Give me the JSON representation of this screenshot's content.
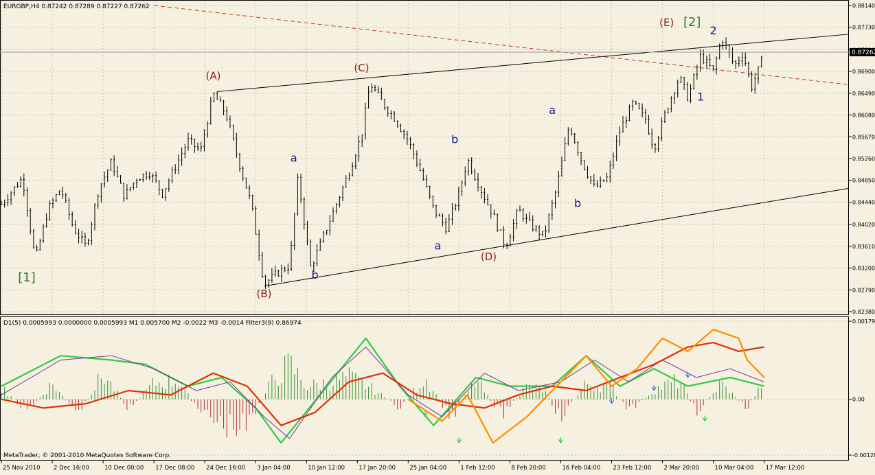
{
  "window": {
    "symbol_header": "EURGBP,H4  0.87242 0.87289 0.87227 0.87262",
    "copyright": "MetaTrader, © 2001-2010 MetaQuotes Software Corp."
  },
  "indicator": {
    "header": "D1(5) 0.0005993 0.0000000 0.0005993  M1 0.005700  M2 -0.0022  M3 -0.0014  Filter3(9) 0.86974"
  },
  "colors": {
    "background": "#f5f0df",
    "candle": "#000000",
    "wave_label_main": "#8b1a1a",
    "wave_label_minor": "#0a1a8c",
    "wave_label_degree": "#2a7a2a",
    "hist_positive": "#2f8f2f",
    "hist_negative": "#b03030",
    "trendline": "#000000",
    "resistance_dashed": "#c0392b",
    "line_green": "#2ecc40",
    "line_orange": "#ff8c00",
    "line_red": "#e03000",
    "line_purple": "#7b2f9e",
    "current_price_bg": "#000000"
  },
  "chart_data": [
    {
      "type": "candlestick",
      "title": "EURGBP,H4",
      "current_price_label": "0.87262",
      "current_price": 0.87262,
      "x_tick_labels": [
        "25 Nov 2010",
        "2 Dec 16:00",
        "10 Dec 00:00",
        "17 Dec 08:00",
        "24 Dec 16:00",
        "3 Jan 04:00",
        "10 Jan 12:00",
        "17 Jan 20:00",
        "25 Jan 04:00",
        "1 Feb 12:00",
        "8 Feb 20:00",
        "16 Feb 04:00",
        "23 Feb 12:00",
        "2 Mar 20:00",
        "10 Mar 04:00",
        "17 Mar 12:00"
      ],
      "y_tick_labels": [
        "0.88140",
        "0.87730",
        "0.87310",
        "0.86900",
        "0.86490",
        "0.86080",
        "0.85670",
        "0.85260",
        "0.84850",
        "0.84440",
        "0.84020",
        "0.83610",
        "0.83200",
        "0.82790",
        "0.82380"
      ],
      "ylim": [
        0.8238,
        0.8814
      ],
      "price_path": [
        {
          "pos": 0.0,
          "price": 0.844
        },
        {
          "pos": 2.5,
          "price": 0.849
        },
        {
          "pos": 4.0,
          "price": 0.8335
        },
        {
          "pos": 5.5,
          "price": 0.843
        },
        {
          "pos": 7.0,
          "price": 0.847
        },
        {
          "pos": 8.5,
          "price": 0.8395
        },
        {
          "pos": 10.0,
          "price": 0.836
        },
        {
          "pos": 11.5,
          "price": 0.847
        },
        {
          "pos": 13.0,
          "price": 0.852
        },
        {
          "pos": 14.5,
          "price": 0.8455
        },
        {
          "pos": 16.0,
          "price": 0.849
        },
        {
          "pos": 17.5,
          "price": 0.85
        },
        {
          "pos": 19.0,
          "price": 0.846
        },
        {
          "pos": 20.5,
          "price": 0.851
        },
        {
          "pos": 22.0,
          "price": 0.856
        },
        {
          "pos": 23.5,
          "price": 0.854
        },
        {
          "pos": 25.0,
          "price": 0.8648
        },
        {
          "pos": 26.5,
          "price": 0.861
        },
        {
          "pos": 28.0,
          "price": 0.852
        },
        {
          "pos": 29.5,
          "price": 0.844
        },
        {
          "pos": 31.0,
          "price": 0.829
        },
        {
          "pos": 32.5,
          "price": 0.831
        },
        {
          "pos": 34.0,
          "price": 0.8325
        },
        {
          "pos": 35.0,
          "price": 0.849
        },
        {
          "pos": 36.5,
          "price": 0.832
        },
        {
          "pos": 38.0,
          "price": 0.838
        },
        {
          "pos": 39.5,
          "price": 0.844
        },
        {
          "pos": 41.0,
          "price": 0.85
        },
        {
          "pos": 42.5,
          "price": 0.857
        },
        {
          "pos": 43.5,
          "price": 0.8668
        },
        {
          "pos": 45.0,
          "price": 0.863
        },
        {
          "pos": 46.5,
          "price": 0.86
        },
        {
          "pos": 48.0,
          "price": 0.856
        },
        {
          "pos": 49.5,
          "price": 0.85
        },
        {
          "pos": 51.0,
          "price": 0.843
        },
        {
          "pos": 52.5,
          "price": 0.8395
        },
        {
          "pos": 54.0,
          "price": 0.846
        },
        {
          "pos": 55.0,
          "price": 0.8525
        },
        {
          "pos": 56.5,
          "price": 0.847
        },
        {
          "pos": 58.0,
          "price": 0.842
        },
        {
          "pos": 59.5,
          "price": 0.836
        },
        {
          "pos": 61.0,
          "price": 0.843
        },
        {
          "pos": 62.5,
          "price": 0.84
        },
        {
          "pos": 64.0,
          "price": 0.838
        },
        {
          "pos": 65.5,
          "price": 0.847
        },
        {
          "pos": 67.0,
          "price": 0.859
        },
        {
          "pos": 68.5,
          "price": 0.852
        },
        {
          "pos": 70.0,
          "price": 0.847
        },
        {
          "pos": 71.5,
          "price": 0.849
        },
        {
          "pos": 73.0,
          "price": 0.858
        },
        {
          "pos": 74.5,
          "price": 0.863
        },
        {
          "pos": 76.0,
          "price": 0.86
        },
        {
          "pos": 77.0,
          "price": 0.8545
        },
        {
          "pos": 78.5,
          "price": 0.862
        },
        {
          "pos": 80.0,
          "price": 0.868
        },
        {
          "pos": 81.0,
          "price": 0.864
        },
        {
          "pos": 82.5,
          "price": 0.872
        },
        {
          "pos": 84.0,
          "price": 0.869
        },
        {
          "pos": 85.0,
          "price": 0.8755
        },
        {
          "pos": 86.5,
          "price": 0.87
        },
        {
          "pos": 87.5,
          "price": 0.8725
        },
        {
          "pos": 88.5,
          "price": 0.866
        },
        {
          "pos": 89.5,
          "price": 0.87
        },
        {
          "pos": 90.0,
          "price": 0.8726
        }
      ],
      "wave_labels": [
        {
          "text": "[1]",
          "group": "degree",
          "pos": 3.0,
          "price": 0.8295
        },
        {
          "text": "(A)",
          "group": "main",
          "pos": 25.0,
          "price": 0.8675
        },
        {
          "text": "(B)",
          "group": "main",
          "pos": 31.0,
          "price": 0.8265
        },
        {
          "text": "a",
          "group": "minor",
          "pos": 34.5,
          "price": 0.852
        },
        {
          "text": "b",
          "group": "minor",
          "pos": 37.0,
          "price": 0.83
        },
        {
          "text": "(C)",
          "group": "main",
          "pos": 42.5,
          "price": 0.869
        },
        {
          "text": "a",
          "group": "minor",
          "pos": 51.5,
          "price": 0.8355
        },
        {
          "text": "b",
          "group": "minor",
          "pos": 53.5,
          "price": 0.8555
        },
        {
          "text": "(D)",
          "group": "main",
          "pos": 57.5,
          "price": 0.8335
        },
        {
          "text": "a",
          "group": "minor",
          "pos": 65.0,
          "price": 0.861
        },
        {
          "text": "b",
          "group": "minor",
          "pos": 68.0,
          "price": 0.8435
        },
        {
          "text": "(E)",
          "group": "main",
          "pos": 78.5,
          "price": 0.8775
        },
        {
          "text": "[2]",
          "group": "degree",
          "pos": 81.5,
          "price": 0.8775
        },
        {
          "text": "2",
          "group": "minor",
          "pos": 84.0,
          "price": 0.876
        },
        {
          "text": "1",
          "group": "minor",
          "pos": 82.5,
          "price": 0.8635
        }
      ],
      "trendlines": [
        {
          "name": "upper-triangle",
          "style": "solid",
          "p1": {
            "pos": 25.5,
            "price": 0.8652
          },
          "p2": {
            "pos": 100.0,
            "price": 0.876
          }
        },
        {
          "name": "lower-triangle",
          "style": "solid",
          "p1": {
            "pos": 31.0,
            "price": 0.8286
          },
          "p2": {
            "pos": 100.0,
            "price": 0.847
          }
        },
        {
          "name": "resistance",
          "style": "dashed",
          "p1": {
            "pos": 18.0,
            "price": 0.8814
          },
          "p2": {
            "pos": 100.0,
            "price": 0.8665
          }
        }
      ]
    },
    {
      "type": "histogram+line",
      "title": "D1(5)",
      "y_tick_labels": [
        "0.00179",
        "0.00",
        "-0.00128"
      ],
      "ylim": [
        -0.00128,
        0.00179
      ],
      "histogram_envelope": [
        {
          "pos": 0,
          "value": 0.0004
        },
        {
          "pos": 3,
          "value": -0.0004
        },
        {
          "pos": 6,
          "value": 0.0005
        },
        {
          "pos": 9,
          "value": -0.0005
        },
        {
          "pos": 12,
          "value": 0.0008
        },
        {
          "pos": 15,
          "value": -0.0003
        },
        {
          "pos": 18,
          "value": 0.0005
        },
        {
          "pos": 21,
          "value": 0.0006
        },
        {
          "pos": 23,
          "value": -0.0003
        },
        {
          "pos": 26,
          "value": -0.0008
        },
        {
          "pos": 29,
          "value": -0.0009
        },
        {
          "pos": 32,
          "value": 0.0006
        },
        {
          "pos": 34,
          "value": 0.0011
        },
        {
          "pos": 36,
          "value": 0.0004
        },
        {
          "pos": 38,
          "value": 0.0005
        },
        {
          "pos": 41,
          "value": 0.0007
        },
        {
          "pos": 44,
          "value": 0.0003
        },
        {
          "pos": 47,
          "value": -0.0003
        },
        {
          "pos": 50,
          "value": 0.0007
        },
        {
          "pos": 53,
          "value": -0.0006
        },
        {
          "pos": 56,
          "value": 0.0006
        },
        {
          "pos": 59,
          "value": -0.0005
        },
        {
          "pos": 62,
          "value": 0.0004
        },
        {
          "pos": 64,
          "value": 0.0003
        },
        {
          "pos": 66,
          "value": -0.0006
        },
        {
          "pos": 69,
          "value": 0.0005
        },
        {
          "pos": 72,
          "value": 0.0004
        },
        {
          "pos": 74,
          "value": -0.0004
        },
        {
          "pos": 77,
          "value": 0.0003
        },
        {
          "pos": 80,
          "value": 0.0006
        },
        {
          "pos": 82,
          "value": -0.0004
        },
        {
          "pos": 85,
          "value": 0.0005
        },
        {
          "pos": 88,
          "value": -0.0003
        },
        {
          "pos": 90,
          "value": 0.0006
        }
      ],
      "series": [
        {
          "key": "green",
          "points": [
            {
              "pos": 0,
              "value": 0.0003
            },
            {
              "pos": 7,
              "value": 0.001
            },
            {
              "pos": 13,
              "value": 0.0009
            },
            {
              "pos": 17,
              "value": 0.0008
            },
            {
              "pos": 22,
              "value": 0.0003
            },
            {
              "pos": 26,
              "value": 0.0005
            },
            {
              "pos": 30,
              "value": -0.0002
            },
            {
              "pos": 33,
              "value": -0.001
            },
            {
              "pos": 38,
              "value": 0.0002
            },
            {
              "pos": 43,
              "value": 0.0014
            },
            {
              "pos": 47,
              "value": 0.0003
            },
            {
              "pos": 51,
              "value": -0.0006
            },
            {
              "pos": 56,
              "value": 0.0005
            },
            {
              "pos": 60,
              "value": 0.0003
            },
            {
              "pos": 65,
              "value": 0.0003
            },
            {
              "pos": 69,
              "value": 0.001
            },
            {
              "pos": 73,
              "value": 0.0003
            },
            {
              "pos": 77,
              "value": 0.0007
            },
            {
              "pos": 81,
              "value": 0.0003
            },
            {
              "pos": 86,
              "value": 0.0005
            },
            {
              "pos": 90,
              "value": 0.0003
            }
          ]
        },
        {
          "key": "purple",
          "points": [
            {
              "pos": 0,
              "value": 0.0001
            },
            {
              "pos": 7,
              "value": 0.0009
            },
            {
              "pos": 13,
              "value": 0.001
            },
            {
              "pos": 18,
              "value": 0.0007
            },
            {
              "pos": 23,
              "value": 0.0002
            },
            {
              "pos": 27,
              "value": 0.0004
            },
            {
              "pos": 31,
              "value": -0.0004
            },
            {
              "pos": 34,
              "value": -0.0009
            },
            {
              "pos": 39,
              "value": 0.0005
            },
            {
              "pos": 43,
              "value": 0.0012
            },
            {
              "pos": 48,
              "value": 0.0001
            },
            {
              "pos": 52,
              "value": -0.0004
            },
            {
              "pos": 57,
              "value": 0.0006
            },
            {
              "pos": 61,
              "value": 0.0002
            },
            {
              "pos": 66,
              "value": 0.0004
            },
            {
              "pos": 70,
              "value": 0.0009
            },
            {
              "pos": 74,
              "value": 0.0004
            },
            {
              "pos": 78,
              "value": 0.0009
            },
            {
              "pos": 82,
              "value": 0.0005
            },
            {
              "pos": 86,
              "value": 0.0007
            },
            {
              "pos": 90,
              "value": 0.0004
            }
          ]
        },
        {
          "key": "red",
          "points": [
            {
              "pos": 0,
              "value": 0.0
            },
            {
              "pos": 5,
              "value": -0.0002
            },
            {
              "pos": 10,
              "value": -0.0001
            },
            {
              "pos": 15,
              "value": 0.0002
            },
            {
              "pos": 20,
              "value": 0.0001
            },
            {
              "pos": 25,
              "value": 0.0006
            },
            {
              "pos": 29,
              "value": 0.0003
            },
            {
              "pos": 33,
              "value": -0.0006
            },
            {
              "pos": 37,
              "value": -0.0003
            },
            {
              "pos": 41,
              "value": 0.0004
            },
            {
              "pos": 45,
              "value": 0.0006
            },
            {
              "pos": 49,
              "value": 0.0001
            },
            {
              "pos": 53,
              "value": -0.0001
            },
            {
              "pos": 57,
              "value": -0.0002
            },
            {
              "pos": 61,
              "value": 0.0001
            },
            {
              "pos": 65,
              "value": 0.0003
            },
            {
              "pos": 69,
              "value": 0.0002
            },
            {
              "pos": 73,
              "value": 0.0005
            },
            {
              "pos": 77,
              "value": 0.0008
            },
            {
              "pos": 81,
              "value": 0.0012
            },
            {
              "pos": 84,
              "value": 0.0013
            },
            {
              "pos": 87,
              "value": 0.0011
            },
            {
              "pos": 90,
              "value": 0.0012
            }
          ]
        },
        {
          "key": "orange",
          "points": [
            {
              "pos": 48,
              "value": 0.0
            },
            {
              "pos": 52,
              "value": -0.0005
            },
            {
              "pos": 55,
              "value": 0.0001
            },
            {
              "pos": 58,
              "value": -0.001
            },
            {
              "pos": 62,
              "value": -0.0004
            },
            {
              "pos": 66,
              "value": 0.0004
            },
            {
              "pos": 69,
              "value": 0.001
            },
            {
              "pos": 72,
              "value": 0.0003
            },
            {
              "pos": 75,
              "value": 0.0007
            },
            {
              "pos": 78,
              "value": 0.0014
            },
            {
              "pos": 81,
              "value": 0.0011
            },
            {
              "pos": 84,
              "value": 0.0016
            },
            {
              "pos": 87,
              "value": 0.0014
            },
            {
              "pos": 88,
              "value": 0.0009
            },
            {
              "pos": 90,
              "value": 0.0005
            }
          ]
        }
      ]
    }
  ]
}
